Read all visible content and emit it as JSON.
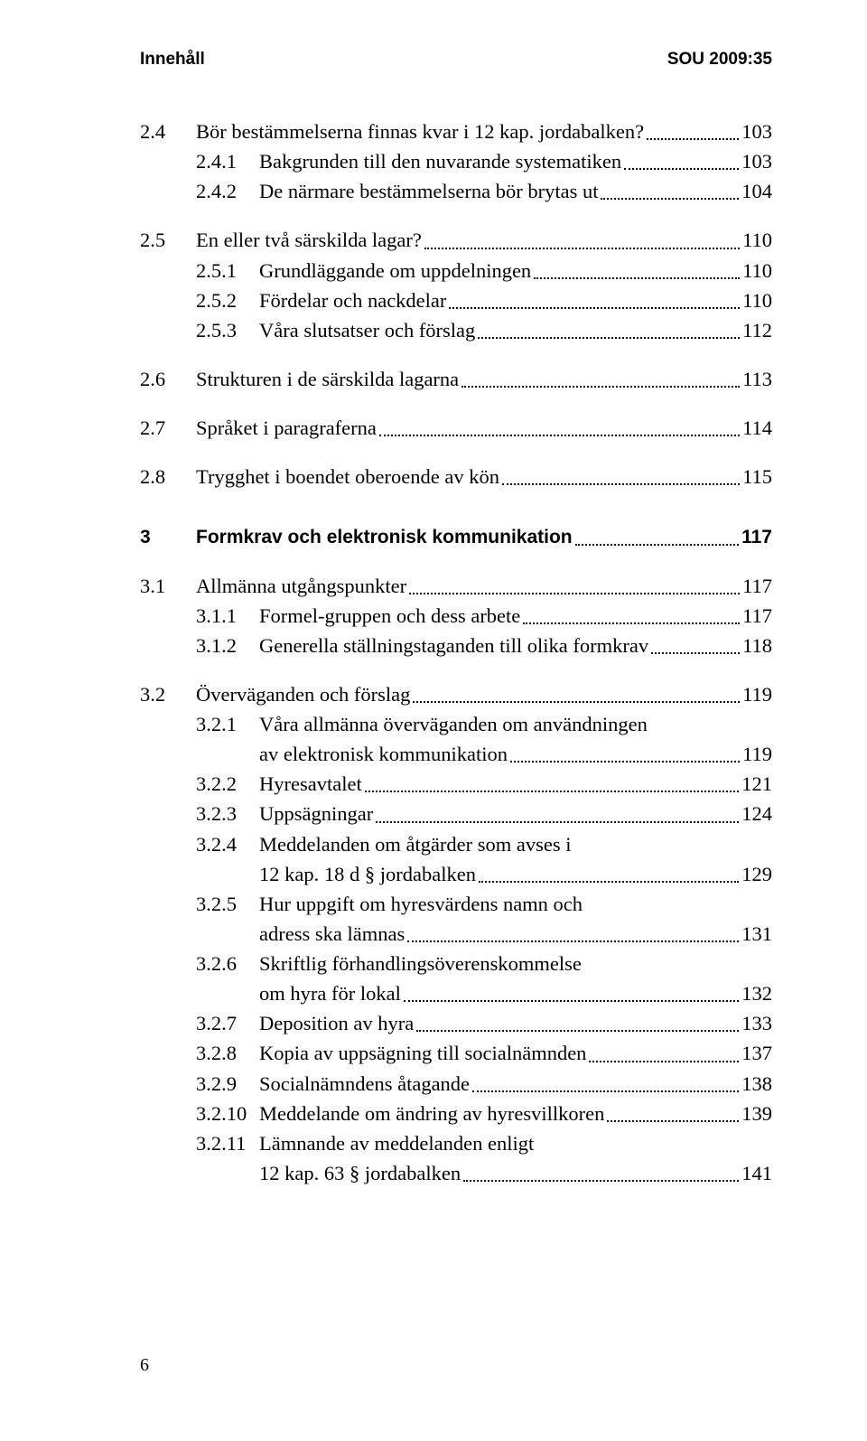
{
  "header": {
    "left": "Innehåll",
    "right": "SOU 2009:35"
  },
  "footer": {
    "page_number": "6"
  },
  "toc": [
    {
      "type": "row",
      "indent": 0,
      "num": "2.4",
      "text": "Bör bestämmelserna finnas kvar i 12 kap. jordabalken?",
      "page": "103"
    },
    {
      "type": "row",
      "indent": 1,
      "num": "2.4.1",
      "text": "Bakgrunden till den nuvarande systematiken",
      "page": "103"
    },
    {
      "type": "row",
      "indent": 1,
      "num": "2.4.2",
      "text": "De närmare bestämmelserna bör brytas ut",
      "page": "104"
    },
    {
      "type": "spacer"
    },
    {
      "type": "row",
      "indent": 0,
      "num": "2.5",
      "text": "En eller två särskilda lagar?",
      "page": "110"
    },
    {
      "type": "row",
      "indent": 1,
      "num": "2.5.1",
      "text": "Grundläggande om uppdelningen",
      "page": "110"
    },
    {
      "type": "row",
      "indent": 1,
      "num": "2.5.2",
      "text": "Fördelar och nackdelar",
      "page": "110"
    },
    {
      "type": "row",
      "indent": 1,
      "num": "2.5.3",
      "text": "Våra slutsatser och förslag",
      "page": "112"
    },
    {
      "type": "spacer"
    },
    {
      "type": "row",
      "indent": 0,
      "num": "2.6",
      "text": "Strukturen i de särskilda lagarna",
      "page": "113"
    },
    {
      "type": "spacer"
    },
    {
      "type": "row",
      "indent": 0,
      "num": "2.7",
      "text": "Språket i paragraferna",
      "page": "114"
    },
    {
      "type": "spacer"
    },
    {
      "type": "row",
      "indent": 0,
      "num": "2.8",
      "text": "Trygghet i boendet oberoende av kön",
      "page": "115"
    },
    {
      "type": "spacer-lg"
    },
    {
      "type": "row",
      "indent": 0,
      "bold": true,
      "num": "3",
      "text": "Formkrav och elektronisk kommunikation",
      "page": "117"
    },
    {
      "type": "spacer"
    },
    {
      "type": "row",
      "indent": 0,
      "num": "3.1",
      "text": "Allmänna utgångspunkter",
      "page": "117"
    },
    {
      "type": "row",
      "indent": 1,
      "num": "3.1.1",
      "text": "Formel-gruppen och dess arbete",
      "page": "117"
    },
    {
      "type": "row",
      "indent": 1,
      "num": "3.1.2",
      "text": "Generella ställningstaganden till olika formkrav",
      "page": "118"
    },
    {
      "type": "spacer"
    },
    {
      "type": "row",
      "indent": 0,
      "num": "3.2",
      "text": "Överväganden och förslag",
      "page": "119"
    },
    {
      "type": "cont",
      "indent": 1,
      "num": "3.2.1",
      "text": "Våra allmänna överväganden om användningen"
    },
    {
      "type": "row",
      "indent": 2,
      "text": "av elektronisk kommunikation",
      "page": "119"
    },
    {
      "type": "row",
      "indent": 1,
      "num": "3.2.2",
      "text": "Hyresavtalet",
      "page": "121"
    },
    {
      "type": "row",
      "indent": 1,
      "num": "3.2.3",
      "text": "Uppsägningar",
      "page": "124"
    },
    {
      "type": "cont",
      "indent": 1,
      "num": "3.2.4",
      "text": "Meddelanden om åtgärder som avses i"
    },
    {
      "type": "row",
      "indent": 2,
      "text": "12 kap. 18 d § jordabalken",
      "page": "129"
    },
    {
      "type": "cont",
      "indent": 1,
      "num": "3.2.5",
      "text": "Hur uppgift om hyresvärdens namn och"
    },
    {
      "type": "row",
      "indent": 2,
      "text": "adress ska lämnas",
      "page": "131"
    },
    {
      "type": "cont",
      "indent": 1,
      "num": "3.2.6",
      "text": "Skriftlig förhandlingsöverenskommelse"
    },
    {
      "type": "row",
      "indent": 2,
      "text": "om hyra för lokal",
      "page": "132"
    },
    {
      "type": "row",
      "indent": 1,
      "num": "3.2.7",
      "text": "Deposition av hyra",
      "page": "133"
    },
    {
      "type": "row",
      "indent": 1,
      "num": "3.2.8",
      "text": "Kopia av uppsägning till socialnämnden",
      "page": "137"
    },
    {
      "type": "row",
      "indent": 1,
      "num": "3.2.9",
      "text": "Socialnämndens åtagande",
      "page": "138"
    },
    {
      "type": "row",
      "indent": 1,
      "num": "3.2.10",
      "text": "Meddelande om ändring av hyresvillkoren",
      "page": "139"
    },
    {
      "type": "cont",
      "indent": 1,
      "num": "3.2.11",
      "text": "Lämnande av meddelanden enligt"
    },
    {
      "type": "row",
      "indent": 2,
      "text": "12 kap. 63 § jordabalken",
      "page": "141"
    }
  ]
}
